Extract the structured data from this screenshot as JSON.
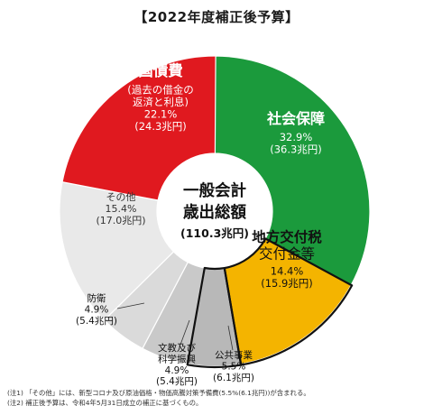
{
  "title": "【2022年度補正後予算】",
  "center": {
    "line1": "一般会計",
    "line2": "歳出総額",
    "total": "(110.3兆円)"
  },
  "notes": [
    "(注1) 「その他」には、新型コロナ及び原油価格・物価高騰対策予備費(5.5%(6.1兆円))が含まれる。",
    "(注2) 補正後予算は、令和4年5月31日成立の補正に基づくもの。"
  ],
  "colors": {
    "social_security": "#1b9a3c",
    "local_tax": "#f4b400",
    "public_works": "#b8b8b8",
    "education": "#c9c9c9",
    "defense": "#dadada",
    "other": "#e9e9e9",
    "national_debt": "#e0191f",
    "outline": "#111111"
  },
  "chart_data": {
    "type": "pie",
    "unit": "兆円",
    "total": 110.3,
    "slices": [
      {
        "key": "social_security",
        "label_lines": [
          "社会保障"
        ],
        "percent": 32.9,
        "percent_label": "32.9%",
        "amount_label": "(36.3兆円)",
        "value": 36.3
      },
      {
        "key": "local_tax",
        "label_lines": [
          "地方交付税",
          "交付金等"
        ],
        "percent": 14.4,
        "percent_label": "14.4%",
        "amount_label": "(15.9兆円)",
        "value": 15.9
      },
      {
        "key": "public_works",
        "label_lines": [
          "公共事業"
        ],
        "percent": 5.5,
        "percent_label": "5.5%",
        "amount_label": "(6.1兆円)",
        "value": 6.1
      },
      {
        "key": "education",
        "label_lines": [
          "文教及び",
          "科学振興"
        ],
        "percent": 4.9,
        "percent_label": "4.9%",
        "amount_label": "(5.4兆円)",
        "value": 5.4
      },
      {
        "key": "defense",
        "label_lines": [
          "防衛"
        ],
        "percent": 4.9,
        "percent_label": "4.9%",
        "amount_label": "(5.4兆円)",
        "value": 5.4
      },
      {
        "key": "other",
        "label_lines": [
          "その他"
        ],
        "percent": 15.4,
        "percent_label": "15.4%",
        "amount_label": "(17.0兆円)",
        "value": 17.0
      },
      {
        "key": "national_debt",
        "label_lines": [
          "国債費",
          "(過去の借金の",
          "返済と利息)"
        ],
        "percent": 22.1,
        "percent_label": "22.1%",
        "amount_label": "(24.3兆円)",
        "value": 24.3
      }
    ]
  }
}
